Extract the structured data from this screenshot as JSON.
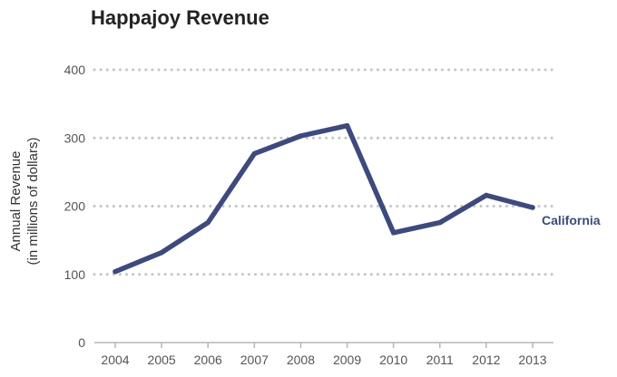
{
  "chart_data": {
    "type": "line",
    "title": "Happajoy Revenue",
    "ylabel_line1": "Annual Revenue",
    "ylabel_line2": "(in millions of dollars)",
    "xlabel": "",
    "x": [
      "2004",
      "2005",
      "2006",
      "2007",
      "2008",
      "2009",
      "2010",
      "2011",
      "2012",
      "2013"
    ],
    "ylim": [
      0,
      400
    ],
    "yticks": [
      0,
      100,
      200,
      300,
      400
    ],
    "grid": true,
    "series": [
      {
        "name": "California",
        "color": "#3d4a7c",
        "values": [
          104,
          132,
          176,
          277,
          303,
          318,
          161,
          176,
          216,
          198
        ]
      }
    ]
  }
}
